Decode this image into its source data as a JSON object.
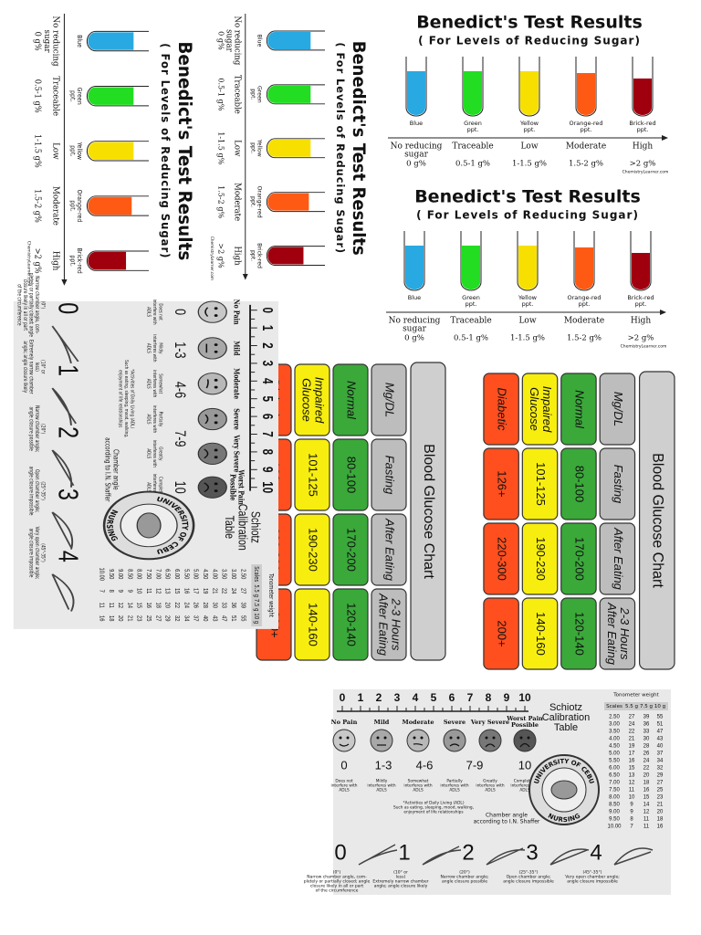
{
  "benedict": {
    "title": "Benedict's Test Results",
    "subtitle": "( For Levels of Reducing Sugar)",
    "source": "ChemistryLearner.com",
    "tubes": [
      {
        "color": "#29a9e1",
        "label": [
          "Blue"
        ],
        "level": [
          "No reducing",
          "sugar"
        ],
        "amount": "0 g%"
      },
      {
        "color": "#22dd22",
        "label": [
          "Green",
          "ppt."
        ],
        "level": [
          "Traceable"
        ],
        "amount": "0.5-1 g%"
      },
      {
        "color": "#f7e000",
        "label": [
          "Yellow",
          "ppt."
        ],
        "level": [
          "Low"
        ],
        "amount": "1-1.5 g%"
      },
      {
        "color": "#ff5a14",
        "label": [
          "Orange-red",
          "ppt."
        ],
        "level": [
          "Moderate"
        ],
        "amount": "1.5-2 g%"
      },
      {
        "color": "#a0000e",
        "label": [
          "Brick-red",
          "ppt."
        ],
        "level": [
          "High"
        ],
        "amount": ">2 g%"
      }
    ]
  },
  "glucose": {
    "title": "Blood Glucose Chart",
    "rows": [
      {
        "color": "#bdbdbd",
        "cells": [
          [
            "Mg/DL"
          ],
          [
            "Fasting"
          ],
          [
            "After Eating"
          ],
          [
            "2-3 Hours",
            "After Eating"
          ]
        ]
      },
      {
        "color": "#3aa93a",
        "cells": [
          [
            "Normal"
          ],
          [
            "80-100"
          ],
          [
            "170-200"
          ],
          [
            "120-140"
          ]
        ]
      },
      {
        "color": "#f7ee10",
        "cells": [
          [
            "Impaired",
            "Glucose"
          ],
          [
            "101-125"
          ],
          [
            "190-230"
          ],
          [
            "140-160"
          ]
        ]
      },
      {
        "color": "#ff4f1f",
        "cells": [
          [
            "Diabetic"
          ],
          [
            "126+"
          ],
          [
            "220-300"
          ],
          [
            "200+"
          ]
        ]
      }
    ]
  },
  "pain": {
    "ruler": [
      0,
      1,
      2,
      3,
      4,
      5,
      6,
      7,
      8,
      9,
      10
    ],
    "faces": [
      {
        "label": [
          "No Pain"
        ],
        "note": [
          "Does not",
          "interfere with",
          "ADLS"
        ]
      },
      {
        "label": [
          "Mild"
        ],
        "note": [
          "Mildly",
          "interferes with",
          "ADLS"
        ]
      },
      {
        "label": [
          "Moderate"
        ],
        "note": [
          "Somewhat",
          "interferes with",
          "ADLS"
        ]
      },
      {
        "label": [
          "Severe"
        ],
        "note": [
          "Partially",
          "interferes with",
          "ADLS"
        ]
      },
      {
        "label": [
          "Very Severe"
        ],
        "note": [
          "Greatly",
          "interferes with",
          "ADLS"
        ]
      },
      {
        "label": [
          "Worst Pain",
          "Possible"
        ],
        "note": [
          "Completely",
          "interferes with",
          "ADLS"
        ]
      }
    ],
    "scores": [
      "0",
      "1-3",
      "4-6",
      "7-9",
      "10"
    ],
    "adl_note": [
      "*Activities of Daily Living (ADL)",
      "Such as eating, sleeping, mood, walking,",
      "enjoyment of life relationships"
    ],
    "shaffer": [
      "Chamber angle",
      "according to I.N. Shaffer"
    ],
    "seal": [
      "UNIVERSITY OF CEBU",
      "NURSING"
    ],
    "schiotz": {
      "title": [
        "Schiotz",
        "Calibration",
        "Table"
      ],
      "weight_header": "Tonometer weight",
      "columns": [
        "Scales",
        "5.5 g",
        "7.5 g",
        "10 g"
      ],
      "rows": [
        [
          "2.50",
          "27",
          "39",
          "55"
        ],
        [
          "3.00",
          "24",
          "36",
          "51"
        ],
        [
          "3.50",
          "22",
          "33",
          "47"
        ],
        [
          "4.00",
          "21",
          "30",
          "43"
        ],
        [
          "4.50",
          "19",
          "28",
          "40"
        ],
        [
          "5.00",
          "17",
          "26",
          "37"
        ],
        [
          "5.50",
          "16",
          "24",
          "34"
        ],
        [
          "6.00",
          "15",
          "22",
          "32"
        ],
        [
          "6.50",
          "13",
          "20",
          "29"
        ],
        [
          "7.00",
          "12",
          "18",
          "27"
        ],
        [
          "7.50",
          "11",
          "16",
          "25"
        ],
        [
          "8.00",
          "10",
          "15",
          "23"
        ],
        [
          "8.50",
          "9",
          "14",
          "21"
        ],
        [
          "9.00",
          "9",
          "12",
          "20"
        ],
        [
          "9.50",
          "8",
          "11",
          "18"
        ],
        [
          "10.00",
          "7",
          "11",
          "16"
        ]
      ]
    },
    "grades": [
      {
        "grade": "0",
        "note": [
          "(0°)",
          "Narrow chamber angle, com-",
          "pletely or partially closed; angle",
          "closure likely in all or part",
          "of the circumference"
        ]
      },
      {
        "grade": "1",
        "note": [
          "(10° or",
          "less)",
          "Extremely narrow chamber",
          "angle; angle closure likely"
        ]
      },
      {
        "grade": "2",
        "note": [
          "(20°)",
          "Narrow chamber angle;",
          "angle closure possible"
        ]
      },
      {
        "grade": "3",
        "note": [
          "(25°-35°)",
          "Open chamber angle;",
          "angle closure impossible"
        ]
      },
      {
        "grade": "4",
        "note": [
          "(45°-35°)",
          "Very open chamber angle;",
          "angle closure impossible"
        ]
      }
    ]
  }
}
